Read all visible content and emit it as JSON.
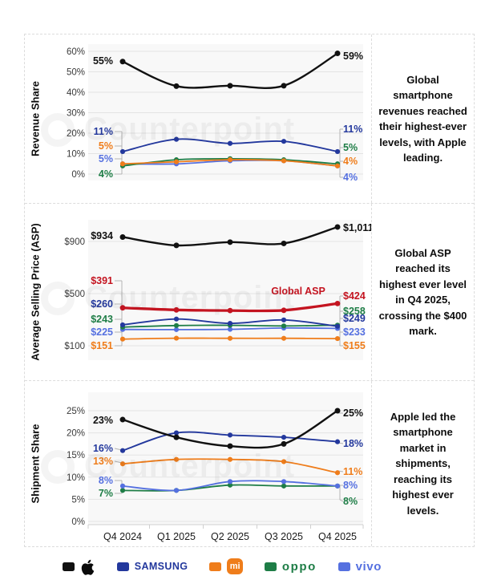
{
  "watermark_text": "Counterpoint",
  "colors": {
    "apple": "#111111",
    "samsung": "#23389d",
    "mi": "#ef7d1b",
    "oppo": "#1e7d46",
    "vivo": "#5570e0",
    "global_asp": "#c41420"
  },
  "chart_data": [
    {
      "type": "line",
      "panel": "Revenue Share",
      "ylabel": "Revenue Share",
      "x": [
        "Q4 2024",
        "Q1 2025",
        "Q2 2025",
        "Q3 2025",
        "Q4 2025"
      ],
      "ylim": [
        0,
        65
      ],
      "grid": true,
      "y_ticks": [
        {
          "label": "60%",
          "value": 60
        },
        {
          "label": "50%",
          "value": 50
        },
        {
          "label": "40%",
          "value": 40
        },
        {
          "label": "30%",
          "value": 30
        },
        {
          "label": "20%",
          "value": 20
        },
        {
          "label": "10%",
          "value": 10
        },
        {
          "label": "0%",
          "value": 0
        }
      ],
      "series": [
        {
          "name": "Apple",
          "key": "apple",
          "values": [
            55,
            43,
            43.2,
            43.2,
            59
          ],
          "start_label": "55%",
          "end_label": "59%"
        },
        {
          "name": "Samsung",
          "key": "samsung",
          "values": [
            11,
            17,
            15,
            16,
            11
          ],
          "start_label": "11%",
          "end_label": "11%"
        },
        {
          "name": "Xiaomi",
          "key": "mi",
          "values": [
            5,
            6,
            7,
            6.5,
            4
          ],
          "start_label": "5%",
          "end_label": "4%"
        },
        {
          "name": "OPPO",
          "key": "oppo",
          "values": [
            4,
            7,
            7.5,
            7,
            5
          ],
          "start_label": "4%",
          "end_label": "5%"
        },
        {
          "name": "vivo",
          "key": "vivo",
          "values": [
            5,
            5,
            6.5,
            6.5,
            4
          ],
          "start_label": "5%",
          "end_label": "4%"
        }
      ],
      "note": "Global smartphone revenues reached their highest-ever levels, with Apple leading."
    },
    {
      "type": "line",
      "panel": "Average Selling Price (ASP)",
      "ylabel": "Average Selling Price (ASP)",
      "x": [
        "Q4 2024",
        "Q1 2025",
        "Q2 2025",
        "Q3 2025",
        "Q4 2025"
      ],
      "ylim": [
        0,
        1070
      ],
      "grid": true,
      "inline_label": "Global ASP",
      "y_ticks": [
        {
          "label": "$900",
          "value": 900
        },
        {
          "label": "$500",
          "value": 500
        },
        {
          "label": "$100",
          "value": 100
        }
      ],
      "series": [
        {
          "name": "Apple",
          "key": "apple",
          "values": [
            934,
            870,
            895,
            885,
            1011
          ],
          "start_label": "$934",
          "end_label": "$1,011"
        },
        {
          "name": "Global ASP",
          "key": "global_asp",
          "values": [
            391,
            375,
            370,
            372,
            424
          ],
          "start_label": "$391",
          "end_label": "$424"
        },
        {
          "name": "Samsung",
          "key": "samsung",
          "values": [
            260,
            305,
            272,
            298,
            249
          ],
          "start_label": "$260",
          "end_label": "$249"
        },
        {
          "name": "OPPO",
          "key": "oppo",
          "values": [
            243,
            255,
            257,
            252,
            258
          ],
          "start_label": "$243",
          "end_label": "$258"
        },
        {
          "name": "vivo",
          "key": "vivo",
          "values": [
            225,
            224,
            226,
            236,
            233
          ],
          "start_label": "$225",
          "end_label": "$233"
        },
        {
          "name": "Xiaomi",
          "key": "mi",
          "values": [
            151,
            158,
            157,
            157,
            155
          ],
          "start_label": "$151",
          "end_label": "$155"
        }
      ],
      "note": "Global ASP reached its highest ever level in Q4 2025, crossing the $400 mark."
    },
    {
      "type": "line",
      "panel": "Shipment Share",
      "ylabel": "Shipment Share",
      "x": [
        "Q4 2024",
        "Q1 2025",
        "Q2 2025",
        "Q3 2025",
        "Q4 2025"
      ],
      "ylim": [
        0,
        29
      ],
      "grid": true,
      "y_ticks": [
        {
          "label": "25%",
          "value": 25
        },
        {
          "label": "20%",
          "value": 20
        },
        {
          "label": "15%",
          "value": 15
        },
        {
          "label": "10%",
          "value": 10
        },
        {
          "label": "5%",
          "value": 5
        },
        {
          "label": "0%",
          "value": 0
        }
      ],
      "series": [
        {
          "name": "Apple",
          "key": "apple",
          "values": [
            23,
            19,
            17,
            17.5,
            25
          ],
          "start_label": "23%",
          "end_label": "25%"
        },
        {
          "name": "Samsung",
          "key": "samsung",
          "values": [
            16,
            20,
            19.5,
            19,
            18
          ],
          "start_label": "16%",
          "end_label": "18%"
        },
        {
          "name": "Xiaomi",
          "key": "mi",
          "values": [
            13,
            14,
            14,
            13.5,
            11
          ],
          "start_label": "13%",
          "end_label": "11%"
        },
        {
          "name": "OPPO",
          "key": "oppo",
          "values": [
            7,
            7,
            8.2,
            8,
            8
          ],
          "start_label": "7%",
          "end_label": "8%"
        },
        {
          "name": "vivo",
          "key": "vivo",
          "values": [
            8,
            7,
            9,
            9,
            8
          ],
          "start_label": "8%",
          "end_label": "8%"
        }
      ],
      "note": "Apple led the smartphone market in shipments, reaching its highest ever levels."
    }
  ],
  "legend": {
    "items": [
      {
        "key": "apple",
        "label": ""
      },
      {
        "key": "samsung",
        "label": "SAMSUNG"
      },
      {
        "key": "mi",
        "label": "mi"
      },
      {
        "key": "oppo",
        "label": "oppo"
      },
      {
        "key": "vivo",
        "label": "vivo"
      }
    ]
  }
}
